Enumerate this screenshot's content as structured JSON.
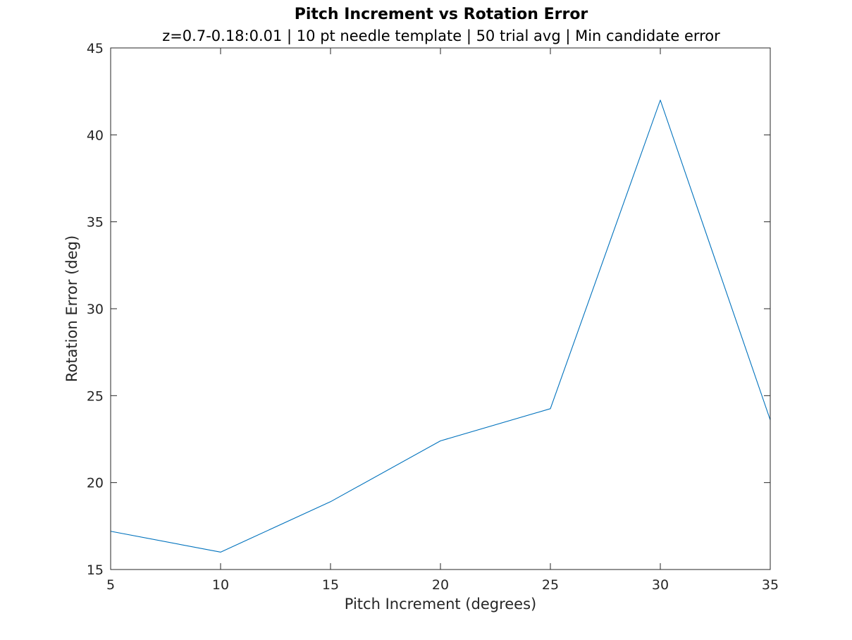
{
  "chart_data": {
    "type": "line",
    "title": "Pitch Increment vs Rotation Error",
    "subtitle": "z=0.7-0.18:0.01 | 10 pt needle template | 50 trial avg | Min candidate error",
    "xlabel": "Pitch Increment (degrees)",
    "ylabel": "Rotation Error (deg)",
    "xlim": [
      5,
      35
    ],
    "ylim": [
      15,
      45
    ],
    "xticks": [
      5,
      10,
      15,
      20,
      25,
      30,
      35
    ],
    "yticks": [
      15,
      20,
      25,
      30,
      35,
      40,
      45
    ],
    "xtick_labels": [
      "5",
      "10",
      "15",
      "20",
      "25",
      "30",
      "35"
    ],
    "ytick_labels": [
      "15",
      "20",
      "25",
      "30",
      "35",
      "40",
      "45"
    ],
    "grid": false,
    "box": true,
    "series": [
      {
        "color": "#0072BD",
        "x": [
          5,
          10,
          15,
          20,
          25,
          30,
          35
        ],
        "y": [
          17.2,
          16.0,
          18.9,
          22.4,
          24.25,
          42.0,
          23.6
        ]
      }
    ]
  }
}
